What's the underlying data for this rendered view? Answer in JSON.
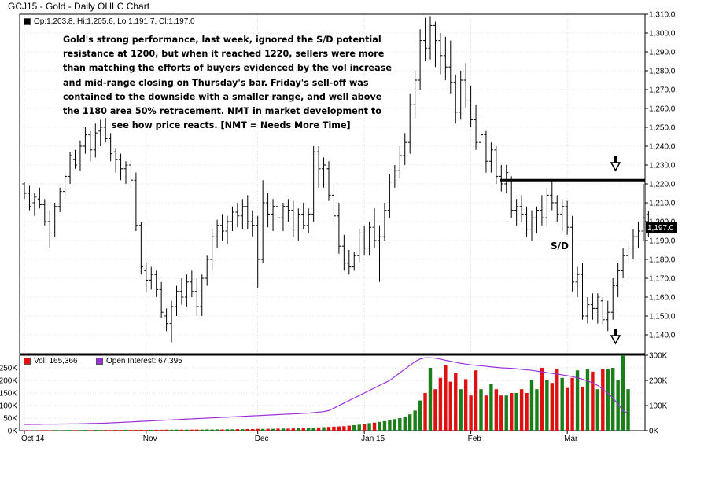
{
  "title": "GCJ15 - Gold - Daily OHLC Chart",
  "ohlc_legend": "Op:1,203.8, Hi:1,205.6, Lo:1,191.7, Cl:1,197.0",
  "annotation_lines": [
    "Gold's strong performance, last week, ignored the S/D potential",
    "resistance at 1200, but when it reached 1220, sellers were more",
    "than matching the efforts of buyers evidenced by the vol increase",
    "and mid-range closing on Thursday's bar.  Friday's sell-off was",
    "contained to the downside with a smaller range, and well above",
    "the 1180 area 50% retracement.  NMT in market development to",
    "see how price reacts.  [NMT = Needs More Time]"
  ],
  "sd_label": "S/D",
  "vol_legend": "Vol: 165,366",
  "oi_legend": "Open Interest: 67,395",
  "colors": {
    "up_bar": "#1a7f1a",
    "down_bar": "#e01010",
    "open_interest": "#9b30d9",
    "price": "#000000"
  },
  "chart_data": [
    {
      "type": "ohlc",
      "title": "GCJ15 - Gold - Daily OHLC Chart",
      "ylim": [
        1130,
        1310
      ],
      "yticks": [
        1140,
        1150,
        1160,
        1170,
        1180,
        1190,
        1200,
        1210,
        1220,
        1230,
        1240,
        1250,
        1260,
        1270,
        1280,
        1290,
        1300,
        1310
      ],
      "ytick_labels": [
        "1,140.0",
        "1,150.0",
        "1,160.0",
        "1,170.0",
        "1,180.0",
        "1,190.0",
        "1,200.0",
        "1,210.0",
        "1,220.0",
        "1,230.0",
        "1,240.0",
        "1,250.0",
        "1,260.0",
        "1,270.0",
        "1,280.0",
        "1,290.0",
        "1,300.0",
        "1,310.0"
      ],
      "xtick_labels": [
        "Oct 14",
        "Nov",
        "Dec",
        "Jan 15",
        "Feb",
        "Mar"
      ],
      "xtick_index": [
        0,
        24,
        46,
        67,
        88,
        107
      ],
      "last_price_label": "1,197.0",
      "resistance_level": 1222,
      "grid": true,
      "bars": [
        [
          1220,
          1221,
          1212,
          1215
        ],
        [
          1215,
          1219,
          1206,
          1208
        ],
        [
          1210,
          1215,
          1203,
          1213
        ],
        [
          1212,
          1218,
          1207,
          1209
        ],
        [
          1209,
          1212,
          1198,
          1200
        ],
        [
          1200,
          1206,
          1186,
          1194
        ],
        [
          1194,
          1210,
          1192,
          1208
        ],
        [
          1208,
          1218,
          1205,
          1216
        ],
        [
          1216,
          1226,
          1213,
          1224
        ],
        [
          1224,
          1237,
          1220,
          1235
        ],
        [
          1233,
          1238,
          1228,
          1230
        ],
        [
          1231,
          1243,
          1227,
          1240
        ],
        [
          1240,
          1250,
          1236,
          1246
        ],
        [
          1246,
          1248,
          1232,
          1238
        ],
        [
          1238,
          1252,
          1234,
          1247
        ],
        [
          1248,
          1254,
          1240,
          1250
        ],
        [
          1250,
          1255,
          1242,
          1244
        ],
        [
          1244,
          1247,
          1232,
          1236
        ],
        [
          1237,
          1239,
          1226,
          1233
        ],
        [
          1233,
          1236,
          1222,
          1228
        ],
        [
          1228,
          1232,
          1220,
          1230
        ],
        [
          1230,
          1233,
          1218,
          1222
        ],
        [
          1222,
          1226,
          1195,
          1198
        ],
        [
          1198,
          1200,
          1172,
          1176
        ],
        [
          1174,
          1178,
          1163,
          1169
        ],
        [
          1169,
          1176,
          1164,
          1172
        ],
        [
          1172,
          1174,
          1160,
          1164
        ],
        [
          1164,
          1168,
          1149,
          1152
        ],
        [
          1150,
          1154,
          1142,
          1146
        ],
        [
          1146,
          1158,
          1136,
          1155
        ],
        [
          1155,
          1166,
          1150,
          1163
        ],
        [
          1163,
          1170,
          1156,
          1160
        ],
        [
          1160,
          1172,
          1155,
          1168
        ],
        [
          1168,
          1174,
          1160,
          1163
        ],
        [
          1163,
          1170,
          1150,
          1155
        ],
        [
          1155,
          1172,
          1150,
          1170
        ],
        [
          1170,
          1182,
          1166,
          1180
        ],
        [
          1180,
          1196,
          1174,
          1192
        ],
        [
          1192,
          1201,
          1186,
          1198
        ],
        [
          1198,
          1204,
          1190,
          1195
        ],
        [
          1195,
          1203,
          1188,
          1200
        ],
        [
          1200,
          1208,
          1195,
          1205
        ],
        [
          1205,
          1210,
          1197,
          1203
        ],
        [
          1203,
          1212,
          1196,
          1208
        ],
        [
          1208,
          1214,
          1196,
          1200
        ],
        [
          1200,
          1206,
          1192,
          1198
        ],
        [
          1198,
          1203,
          1165,
          1180
        ],
        [
          1180,
          1222,
          1178,
          1210
        ],
        [
          1210,
          1215,
          1197,
          1204
        ],
        [
          1204,
          1212,
          1195,
          1208
        ],
        [
          1208,
          1216,
          1198,
          1202
        ],
        [
          1202,
          1210,
          1195,
          1208
        ],
        [
          1208,
          1212,
          1200,
          1206
        ],
        [
          1206,
          1211,
          1192,
          1196
        ],
        [
          1196,
          1207,
          1190,
          1204
        ],
        [
          1204,
          1210,
          1196,
          1198
        ],
        [
          1198,
          1207,
          1194,
          1204
        ],
        [
          1204,
          1240,
          1200,
          1237
        ],
        [
          1237,
          1240,
          1218,
          1228
        ],
        [
          1228,
          1234,
          1218,
          1230
        ],
        [
          1228,
          1232,
          1211,
          1214
        ],
        [
          1214,
          1220,
          1200,
          1203
        ],
        [
          1203,
          1210,
          1183,
          1187
        ],
        [
          1187,
          1193,
          1174,
          1178
        ],
        [
          1178,
          1185,
          1172,
          1176
        ],
        [
          1176,
          1184,
          1174,
          1182
        ],
        [
          1182,
          1196,
          1178,
          1194
        ],
        [
          1194,
          1198,
          1182,
          1186
        ],
        [
          1186,
          1200,
          1182,
          1197
        ],
        [
          1197,
          1207,
          1186,
          1190
        ],
        [
          1190,
          1198,
          1168,
          1192
        ],
        [
          1192,
          1210,
          1190,
          1206
        ],
        [
          1206,
          1225,
          1202,
          1221
        ],
        [
          1221,
          1230,
          1218,
          1227
        ],
        [
          1227,
          1240,
          1223,
          1235
        ],
        [
          1235,
          1247,
          1230,
          1242
        ],
        [
          1242,
          1268,
          1236,
          1262
        ],
        [
          1262,
          1280,
          1255,
          1275
        ],
        [
          1275,
          1302,
          1270,
          1296
        ],
        [
          1296,
          1308,
          1285,
          1292
        ],
        [
          1292,
          1309,
          1286,
          1304
        ],
        [
          1304,
          1306,
          1282,
          1296
        ],
        [
          1296,
          1300,
          1278,
          1288
        ],
        [
          1288,
          1298,
          1275,
          1282
        ],
        [
          1282,
          1296,
          1268,
          1274
        ],
        [
          1274,
          1278,
          1252,
          1258
        ],
        [
          1258,
          1280,
          1254,
          1275
        ],
        [
          1275,
          1284,
          1260,
          1264
        ],
        [
          1264,
          1272,
          1250,
          1254
        ],
        [
          1254,
          1262,
          1238,
          1242
        ],
        [
          1242,
          1256,
          1228,
          1246
        ],
        [
          1246,
          1248,
          1226,
          1232
        ],
        [
          1232,
          1242,
          1226,
          1238
        ],
        [
          1238,
          1240,
          1220,
          1224
        ],
        [
          1224,
          1230,
          1216,
          1220
        ],
        [
          1220,
          1230,
          1215,
          1226
        ],
        [
          1222,
          1224,
          1202,
          1206
        ],
        [
          1206,
          1212,
          1198,
          1208
        ],
        [
          1208,
          1214,
          1200,
          1204
        ],
        [
          1204,
          1208,
          1192,
          1196
        ],
        [
          1196,
          1206,
          1190,
          1202
        ],
        [
          1202,
          1208,
          1194,
          1206
        ],
        [
          1206,
          1214,
          1198,
          1202
        ],
        [
          1202,
          1218,
          1198,
          1214
        ],
        [
          1214,
          1222,
          1206,
          1210
        ],
        [
          1210,
          1214,
          1200,
          1204
        ],
        [
          1204,
          1212,
          1195,
          1208
        ],
        [
          1208,
          1211,
          1193,
          1197
        ],
        [
          1197,
          1203,
          1163,
          1168
        ],
        [
          1168,
          1176,
          1160,
          1172
        ],
        [
          1172,
          1178,
          1148,
          1150
        ],
        [
          1150,
          1160,
          1146,
          1156
        ],
        [
          1156,
          1162,
          1148,
          1154
        ],
        [
          1154,
          1162,
          1146,
          1160
        ],
        [
          1158,
          1160,
          1145,
          1148
        ],
        [
          1148,
          1158,
          1142,
          1152
        ],
        [
          1152,
          1170,
          1148,
          1166
        ],
        [
          1166,
          1178,
          1160,
          1174
        ],
        [
          1174,
          1186,
          1170,
          1182
        ],
        [
          1182,
          1190,
          1178,
          1186
        ],
        [
          1186,
          1196,
          1180,
          1192
        ],
        [
          1192,
          1200,
          1186,
          1195
        ],
        [
          1195,
          1220,
          1190,
          1202
        ],
        [
          1203.8,
          1205.6,
          1191.7,
          1197
        ]
      ]
    },
    {
      "type": "bar",
      "title": "",
      "series": [
        {
          "name": "Vol",
          "last_value": 165366,
          "values": [
            2000,
            1500,
            1800,
            2000,
            2200,
            1800,
            2500,
            2000,
            2400,
            2600,
            2200,
            2500,
            2800,
            2400,
            3000,
            2600,
            2800,
            2500,
            3000,
            2700,
            3100,
            2800,
            3200,
            3400,
            3000,
            3300,
            3500,
            3200,
            3800,
            3600,
            4000,
            3800,
            4200,
            4000,
            4500,
            4200,
            4800,
            4600,
            5000,
            4800,
            5500,
            5200,
            6000,
            5600,
            6500,
            6200,
            7000,
            6800,
            7500,
            7200,
            8000,
            8500,
            8200,
            9000,
            9500,
            10000,
            11000,
            12000,
            13000,
            14000,
            15000,
            16000,
            17000,
            18000,
            20000,
            22000,
            24000,
            26000,
            30000,
            32000,
            35000,
            38000,
            42000,
            46000,
            50000,
            55000,
            65000,
            80000,
            120000,
            150000,
            250000,
            165000,
            210000,
            260000,
            195000,
            230000,
            165000,
            205000,
            140000,
            240000,
            165000,
            140000,
            185000,
            165000,
            140000,
            140000,
            150000,
            150000,
            165000,
            150000,
            200000,
            165000,
            250000,
            200000,
            190000,
            245000,
            210000,
            170000,
            210000,
            240000,
            175000,
            245000,
            235000,
            165000,
            245000,
            245000,
            250000,
            200000,
            300000,
            165366
          ]
        },
        {
          "name": "Open Interest",
          "last_value": 67395,
          "values": [
            25000,
            25000,
            25500,
            25500,
            26000,
            26000,
            26000,
            26500,
            26500,
            27000,
            27000,
            27500,
            28000,
            28500,
            29000,
            29500,
            30000,
            31000,
            32000,
            33000,
            34000,
            35000,
            36000,
            37000,
            38000,
            39000,
            40000,
            41000,
            42000,
            43000,
            44000,
            45000,
            46000,
            47000,
            48000,
            49000,
            50000,
            51000,
            52000,
            53000,
            54000,
            55000,
            56000,
            57000,
            58000,
            59000,
            60000,
            61000,
            62000,
            63000,
            64000,
            65000,
            66000,
            67000,
            68000,
            69000,
            70000,
            72000,
            74000,
            76000,
            80000,
            90000,
            100000,
            110000,
            120000,
            130000,
            140000,
            150000,
            160000,
            170000,
            180000,
            190000,
            200000,
            215000,
            230000,
            245000,
            260000,
            275000,
            285000,
            290000,
            290000,
            288000,
            285000,
            280000,
            276000,
            272000,
            268000,
            265000,
            262000,
            260000,
            258000,
            256000,
            254000,
            252000,
            250000,
            249000,
            248000,
            246000,
            244000,
            242000,
            240000,
            237000,
            234000,
            231000,
            228000,
            225000,
            222000,
            219000,
            215000,
            210000,
            205000,
            198000,
            190000,
            180000,
            165000,
            150000,
            130000,
            105000,
            80000,
            67395
          ]
        }
      ],
      "ylim": [
        0,
        300000
      ],
      "yticks": [
        0,
        50000,
        100000,
        150000,
        200000,
        250000
      ],
      "ytick_labels_left": [
        "0K",
        "50K",
        "100K",
        "150K",
        "200K",
        "250K"
      ],
      "ytick_labels_right": [
        "0K",
        "100K",
        "200K",
        "300K"
      ]
    }
  ]
}
